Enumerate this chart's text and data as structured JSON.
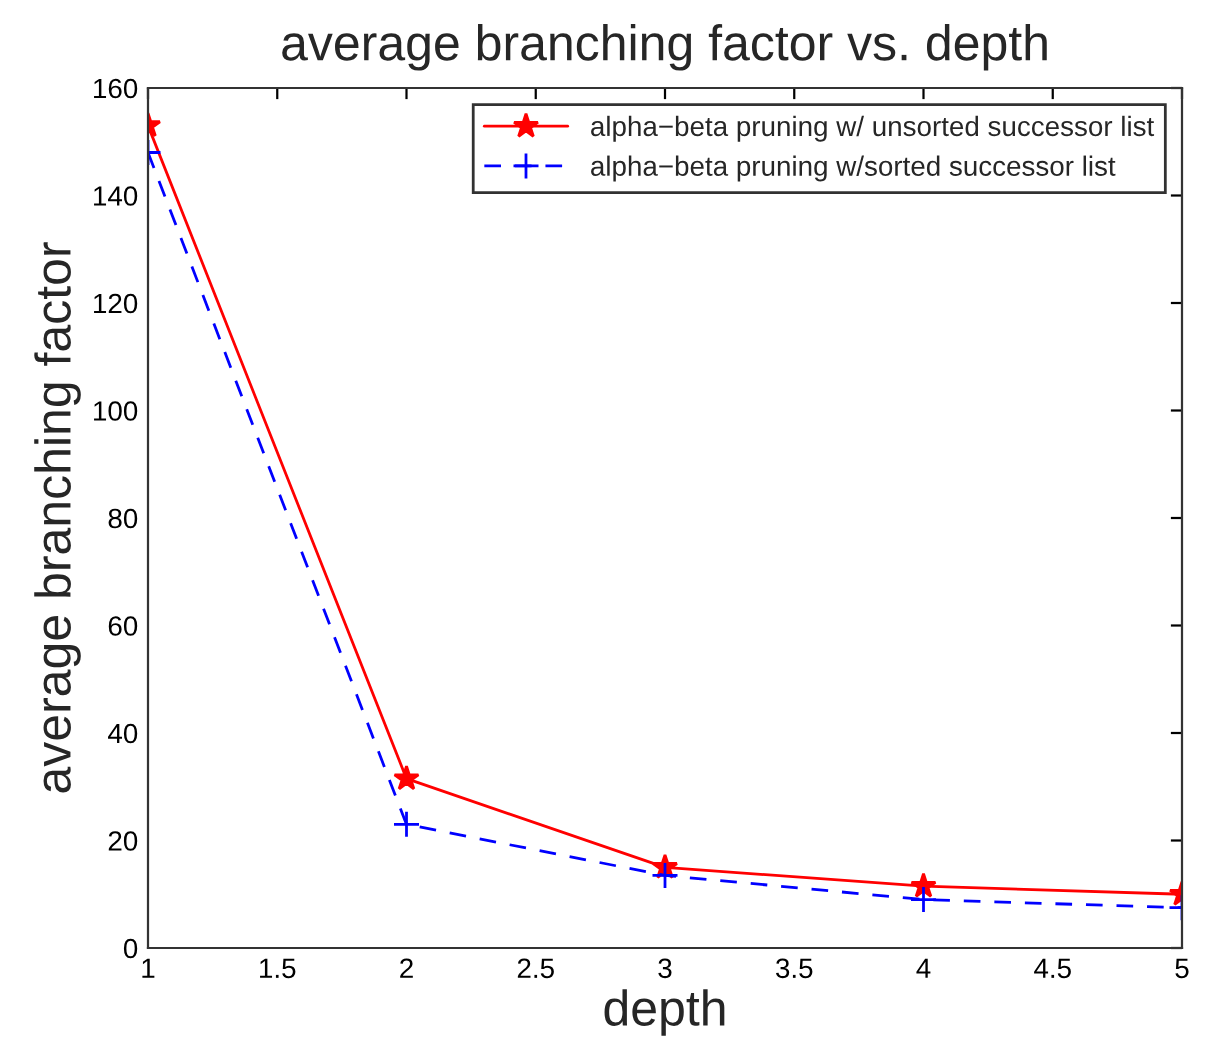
{
  "chart_data": {
    "type": "line",
    "title": "average branching factor vs. depth",
    "xlabel": "depth",
    "ylabel": "average branching factor",
    "x": [
      1,
      2,
      3,
      4,
      5
    ],
    "series": [
      {
        "name": "alpha−beta pruning w/ unsorted successor list",
        "color": "#ff0000",
        "values": [
          153,
          31.5,
          15,
          11.5,
          10
        ],
        "marker": "star",
        "line_style": "solid"
      },
      {
        "name": "alpha−beta pruning w/sorted successor list",
        "color": "#0000ff",
        "values": [
          148,
          23,
          13.5,
          9,
          7.5
        ],
        "marker": "cross",
        "line_style": "dashed"
      }
    ],
    "xlim": [
      1,
      5
    ],
    "xticks": [
      1,
      1.5,
      2,
      2.5,
      3,
      3.5,
      4,
      4.5,
      5
    ],
    "ylim": [
      0,
      160
    ],
    "yticks": [
      0,
      20,
      40,
      60,
      80,
      100,
      120,
      140,
      160
    ],
    "grid": false,
    "legend": "top right"
  }
}
